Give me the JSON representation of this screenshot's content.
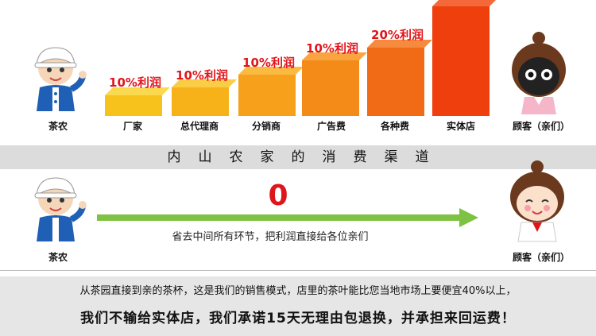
{
  "top": {
    "left_label": "茶农",
    "right_label": "顾客（亲们）",
    "stages": [
      {
        "label": "厂家",
        "tag": "10%利润"
      },
      {
        "label": "总代理商",
        "tag": "10%利润"
      },
      {
        "label": "分销商",
        "tag": "10%利润"
      },
      {
        "label": "广告费",
        "tag": "10%利润"
      },
      {
        "label": "各种费",
        "tag": "20%利润"
      },
      {
        "label": "实体店",
        "tag": ""
      }
    ],
    "colors": [
      "#f7c21b",
      "#f7b21a",
      "#f6a01c",
      "#f48b19",
      "#f16a15",
      "#ee3f0d"
    ]
  },
  "band_title": "内山农家的消费渠道",
  "middle": {
    "left_label": "茶农",
    "right_label": "顾客（亲们）",
    "zero": "0",
    "arrow_text": "省去中间所有环节，把利润直接给各位亲们",
    "arrow_color": "#7dc242"
  },
  "bottom": {
    "line1": "从茶园直接到亲的茶杯，这是我们的销售模式，店里的茶叶能比您当地市场上要便宜40%以上，",
    "line2": "我们不输给实体店，我们承诺15天无理由包退换，并承担来回运费！"
  }
}
